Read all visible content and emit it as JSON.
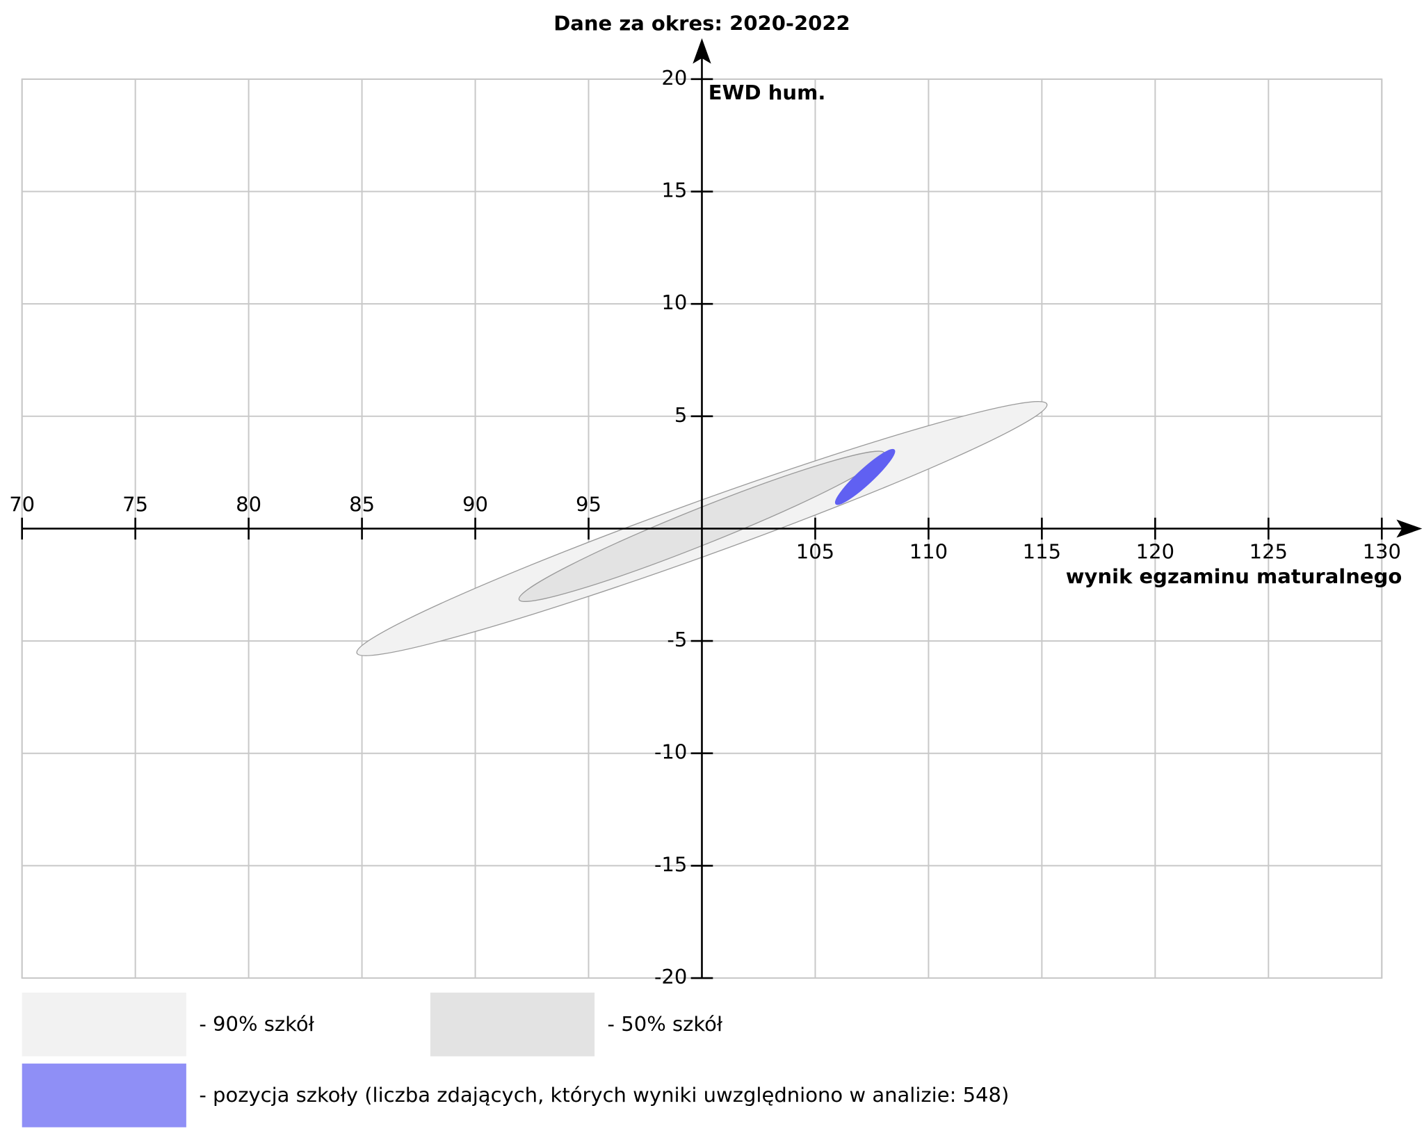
{
  "chart_data": {
    "type": "ellipse",
    "title": "Dane za okres: 2020-2022",
    "x_label": "wynik egzaminu maturalnego",
    "y_label": "EWD hum.",
    "xlim": [
      70,
      130
    ],
    "ylim": [
      -20,
      20
    ],
    "xticks": [
      70,
      75,
      80,
      85,
      90,
      95,
      105,
      110,
      115,
      120,
      125,
      130
    ],
    "yticks": [
      -20,
      -15,
      -10,
      -5,
      5,
      10,
      15,
      20
    ],
    "grid": true,
    "series": [
      {
        "name": "- 90% szkół",
        "color": "#f2f2f2",
        "cx": 100,
        "cy": 0,
        "rx": 16.2,
        "ry": 1.2,
        "angle": 20
      },
      {
        "name": "- 50% szkół",
        "color": "#e3e3e3",
        "cx": 100,
        "cy": 0.1,
        "rx": 8.7,
        "ry": 0.8,
        "angle": 22
      },
      {
        "name": "- pozycja szkoły (liczba zdających, których wyniki uwzględniono w analizie: 548)",
        "color": "#6060f2",
        "cx": 107.2,
        "cy": 2.3,
        "rx": 1.76,
        "ry": 0.33,
        "angle": 43
      }
    ]
  }
}
